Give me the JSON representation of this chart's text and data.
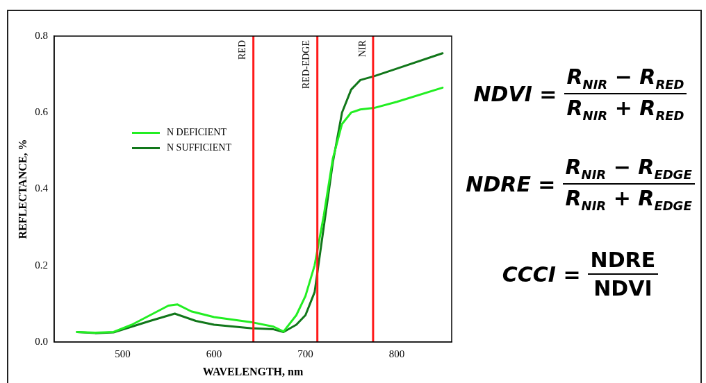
{
  "chart_data": {
    "type": "line",
    "xlabel": "WAVELENGTH, nm",
    "ylabel": "REFLECTANCE, %",
    "xlim": [
      425,
      860
    ],
    "xticks": [
      500,
      600,
      700,
      800
    ],
    "ylim": [
      0,
      0.8
    ],
    "yticks": [
      {
        "value": 0,
        "label": "0.0"
      },
      {
        "value": 0.2,
        "label": "0.2"
      },
      {
        "value": 0.4,
        "label": "0.4"
      },
      {
        "value": 0.6,
        "label": "0.6"
      },
      {
        "value": 0.8,
        "label": "0.8"
      }
    ],
    "grid": false,
    "legend": "top left",
    "marker": "none",
    "line_style": "solid",
    "series": [
      {
        "name": "N DEFICIENT",
        "color": "#22ee22",
        "x": [
          450,
          470,
          490,
          510,
          530,
          550,
          560,
          575,
          600,
          640,
          665,
          676,
          690,
          700,
          710,
          720,
          730,
          740,
          750,
          760,
          775,
          800,
          850
        ],
        "values": [
          0.026,
          0.024,
          0.026,
          0.045,
          0.07,
          0.095,
          0.098,
          0.08,
          0.065,
          0.052,
          0.04,
          0.027,
          0.07,
          0.12,
          0.2,
          0.33,
          0.48,
          0.57,
          0.6,
          0.608,
          0.612,
          0.628,
          0.665
        ]
      },
      {
        "name": "N SUFFICIENT",
        "color": "#11771a",
        "x": [
          450,
          470,
          490,
          510,
          530,
          557,
          580,
          600,
          640,
          665,
          676,
          690,
          700,
          710,
          720,
          730,
          740,
          750,
          760,
          775,
          800,
          850
        ],
        "values": [
          0.026,
          0.023,
          0.025,
          0.04,
          0.055,
          0.074,
          0.055,
          0.045,
          0.036,
          0.033,
          0.026,
          0.045,
          0.07,
          0.13,
          0.3,
          0.47,
          0.6,
          0.66,
          0.685,
          0.695,
          0.715,
          0.755
        ]
      }
    ],
    "ref_lines": [
      {
        "axis": "x",
        "value": 643,
        "label": "RED",
        "color": "#ff1a1a"
      },
      {
        "axis": "x",
        "value": 713,
        "label": "RED-EDGE",
        "color": "#ff1a1a"
      },
      {
        "axis": "x",
        "value": 774,
        "label": "NIR",
        "color": "#ff1a1a"
      }
    ],
    "annotations": [
      "NDVI =",
      "R$_{NIR}$ − R$_{RED}$",
      "R$_{NIR}$ + R$_{RED}$",
      "NDRE =",
      "R$_{NIR}$ − R$_{EDGE}$",
      "R$_{NIR}$ + R$_{EDGE}$",
      "CCCI =",
      "NDRE",
      "NDVI"
    ]
  }
}
